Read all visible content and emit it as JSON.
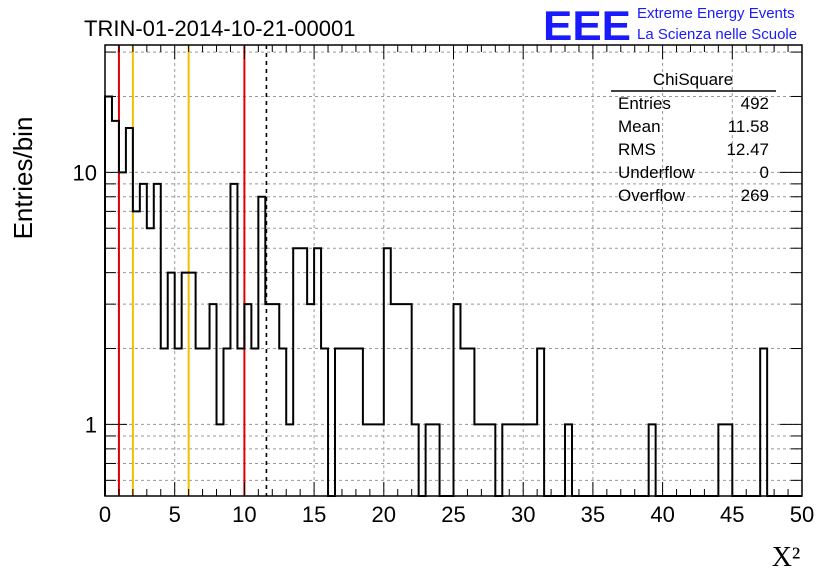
{
  "header": {
    "run_title": "TRIN-01-2014-10-21-00001",
    "logo_text": "EEE",
    "logo_line1": "Extreme Energy Events",
    "logo_line2": "La Scienza nelle Scuole"
  },
  "colors": {
    "logo": "#1a1aff",
    "histogram": "#000000",
    "red_marker": "#e00000",
    "yellow_marker": "#f0c000",
    "grid": "#999999"
  },
  "stats": {
    "title": "ChiSquare",
    "rows": [
      {
        "label": "Entries",
        "value": "492"
      },
      {
        "label": "Mean",
        "value": "11.58"
      },
      {
        "label": "RMS",
        "value": "12.47"
      },
      {
        "label": "Underflow",
        "value": "0"
      },
      {
        "label": "Overflow",
        "value": "269"
      }
    ]
  },
  "chart_data": {
    "type": "histogram",
    "xlabel": "X²",
    "ylabel": "Entries/bin",
    "xlim": [
      0,
      50
    ],
    "ylim": [
      0.52,
      32
    ],
    "yscale": "log",
    "grid": true,
    "bin_width": 0.5,
    "xticks": [
      "0",
      "5",
      "10",
      "15",
      "20",
      "25",
      "30",
      "35",
      "40",
      "45",
      "50"
    ],
    "yticks": [
      {
        "value": 1,
        "label": "1"
      },
      {
        "value": 10,
        "label": "10"
      }
    ],
    "values": [
      20,
      16,
      10,
      15,
      7,
      9,
      6,
      9,
      2,
      4,
      2,
      4,
      4,
      2,
      2,
      3,
      1,
      2,
      9,
      2,
      3,
      2,
      8,
      3,
      3,
      2,
      1,
      5,
      5,
      3,
      5,
      2,
      0,
      2,
      2,
      2,
      2,
      1,
      1,
      1,
      5,
      3,
      3,
      3,
      1,
      0,
      1,
      1,
      0,
      0,
      3,
      2,
      2,
      1,
      1,
      1,
      0,
      1,
      1,
      1,
      1,
      1,
      2,
      0,
      0,
      0,
      1,
      0,
      0,
      0,
      0,
      0,
      0,
      0,
      0,
      0,
      0,
      0,
      1,
      0,
      0,
      0,
      0,
      0,
      0,
      0,
      0,
      0,
      1,
      1,
      0,
      0,
      0,
      0,
      2,
      0,
      0,
      0,
      0,
      0
    ],
    "markers": [
      {
        "x": 1,
        "color": "red",
        "style": "solid"
      },
      {
        "x": 2,
        "color": "yellow",
        "style": "solid"
      },
      {
        "x": 6,
        "color": "yellow",
        "style": "solid"
      },
      {
        "x": 10,
        "color": "red",
        "style": "solid"
      },
      {
        "x": 11.58,
        "color": "black",
        "style": "dashed"
      }
    ]
  }
}
